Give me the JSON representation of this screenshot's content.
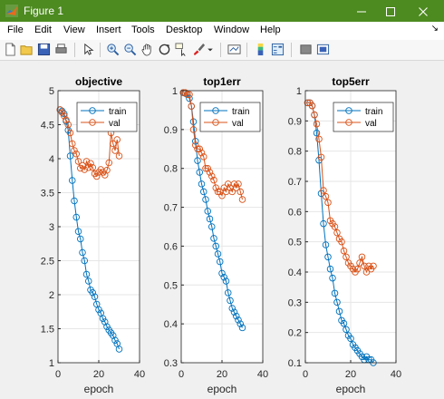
{
  "window": {
    "title": "Figure 1",
    "min_icon": "minimize-icon",
    "max_icon": "maximize-icon",
    "close_icon": "close-icon",
    "accent": "#4d8a20"
  },
  "menu": [
    "File",
    "Edit",
    "View",
    "Insert",
    "Tools",
    "Desktop",
    "Window",
    "Help"
  ],
  "toolbar_icons": [
    "new-figure-icon",
    "open-file-icon",
    "save-icon",
    "print-icon",
    "edit-plot-arrow-icon",
    "zoom-in-icon",
    "zoom-out-icon",
    "pan-hand-icon",
    "rotate-3d-icon",
    "data-cursor-icon",
    "brush-icon",
    "brush-dropdown-icon",
    "link-plot-icon",
    "insert-colorbar-icon",
    "insert-legend-icon",
    "hide-plot-tools-icon",
    "show-plot-tools-icon"
  ],
  "colors": {
    "train": "#0072bd",
    "val": "#d95319"
  },
  "chart_data": [
    {
      "type": "line",
      "title": "objective",
      "xlabel": "epoch",
      "ylabel": "",
      "xlim": [
        0,
        40
      ],
      "ylim": [
        1,
        5
      ],
      "xticks": [
        "0",
        "20",
        "40"
      ],
      "yticks": [
        "1",
        "1.5",
        "2",
        "2.5",
        "3",
        "3.5",
        "4",
        "4.5",
        "5"
      ],
      "grid": true,
      "legend_position": "top-right",
      "series": [
        {
          "name": "train",
          "x": [
            1,
            2,
            3,
            4,
            5,
            6,
            7,
            8,
            9,
            10,
            11,
            12,
            13,
            14,
            15,
            16,
            17,
            18,
            19,
            20,
            21,
            22,
            23,
            24,
            25,
            26,
            27,
            28,
            29,
            30
          ],
          "values": [
            4.72,
            4.7,
            4.66,
            4.55,
            4.42,
            4.04,
            3.68,
            3.38,
            3.14,
            2.93,
            2.82,
            2.62,
            2.5,
            2.3,
            2.2,
            2.07,
            2.03,
            1.97,
            1.86,
            1.78,
            1.73,
            1.65,
            1.6,
            1.53,
            1.48,
            1.44,
            1.4,
            1.33,
            1.28,
            1.2
          ]
        },
        {
          "name": "val",
          "x": [
            1,
            2,
            3,
            4,
            5,
            6,
            7,
            8,
            9,
            10,
            11,
            12,
            13,
            14,
            15,
            16,
            17,
            18,
            19,
            20,
            21,
            22,
            23,
            24,
            25,
            26,
            27,
            28,
            29,
            30
          ],
          "values": [
            4.72,
            4.68,
            4.63,
            4.57,
            4.5,
            4.38,
            4.22,
            4.12,
            4.07,
            3.96,
            3.86,
            3.9,
            3.84,
            3.96,
            3.87,
            3.93,
            3.87,
            3.78,
            3.74,
            3.8,
            3.84,
            3.8,
            3.76,
            3.83,
            3.94,
            4.38,
            4.22,
            4.12,
            4.28,
            4.04
          ]
        }
      ]
    },
    {
      "type": "line",
      "title": "top1err",
      "xlabel": "epoch",
      "ylabel": "",
      "xlim": [
        0,
        40
      ],
      "ylim": [
        0.3,
        1
      ],
      "xticks": [
        "0",
        "20",
        "40"
      ],
      "yticks": [
        "0.3",
        "0.4",
        "0.5",
        "0.6",
        "0.7",
        "0.8",
        "0.9",
        "1"
      ],
      "grid": true,
      "legend_position": "top-right",
      "series": [
        {
          "name": "train",
          "x": [
            1,
            2,
            3,
            4,
            5,
            6,
            7,
            8,
            9,
            10,
            11,
            12,
            13,
            14,
            15,
            16,
            17,
            18,
            19,
            20,
            21,
            22,
            23,
            24,
            25,
            26,
            27,
            28,
            29,
            30
          ],
          "values": [
            0.995,
            0.993,
            0.99,
            0.98,
            0.96,
            0.92,
            0.87,
            0.82,
            0.79,
            0.76,
            0.74,
            0.72,
            0.69,
            0.67,
            0.65,
            0.62,
            0.6,
            0.58,
            0.56,
            0.53,
            0.52,
            0.51,
            0.48,
            0.46,
            0.44,
            0.43,
            0.42,
            0.41,
            0.4,
            0.39
          ]
        },
        {
          "name": "val",
          "x": [
            1,
            2,
            3,
            4,
            5,
            6,
            7,
            8,
            9,
            10,
            11,
            12,
            13,
            14,
            15,
            16,
            17,
            18,
            19,
            20,
            21,
            22,
            23,
            24,
            25,
            26,
            27,
            28,
            29,
            30
          ],
          "values": [
            0.995,
            0.995,
            0.99,
            0.99,
            0.96,
            0.9,
            0.86,
            0.85,
            0.85,
            0.84,
            0.83,
            0.8,
            0.8,
            0.79,
            0.78,
            0.77,
            0.75,
            0.74,
            0.74,
            0.73,
            0.75,
            0.74,
            0.76,
            0.75,
            0.74,
            0.76,
            0.75,
            0.76,
            0.74,
            0.72
          ]
        }
      ]
    },
    {
      "type": "line",
      "title": "top5err",
      "xlabel": "epoch",
      "ylabel": "",
      "xlim": [
        0,
        40
      ],
      "ylim": [
        0.1,
        1
      ],
      "xticks": [
        "0",
        "20",
        "40"
      ],
      "yticks": [
        "0.1",
        "0.2",
        "0.3",
        "0.4",
        "0.5",
        "0.6",
        "0.7",
        "0.8",
        "0.9",
        "1"
      ],
      "grid": true,
      "legend_position": "top-right",
      "series": [
        {
          "name": "train",
          "x": [
            1,
            2,
            3,
            4,
            5,
            6,
            7,
            8,
            9,
            10,
            11,
            12,
            13,
            14,
            15,
            16,
            17,
            18,
            19,
            20,
            21,
            22,
            23,
            24,
            25,
            26,
            27,
            28,
            29,
            30
          ],
          "values": [
            0.96,
            0.96,
            0.95,
            0.92,
            0.86,
            0.77,
            0.66,
            0.56,
            0.49,
            0.45,
            0.41,
            0.38,
            0.33,
            0.3,
            0.27,
            0.24,
            0.23,
            0.21,
            0.19,
            0.18,
            0.16,
            0.15,
            0.14,
            0.13,
            0.12,
            0.11,
            0.12,
            0.11,
            0.11,
            0.1
          ]
        },
        {
          "name": "val",
          "x": [
            1,
            2,
            3,
            4,
            5,
            6,
            7,
            8,
            9,
            10,
            11,
            12,
            13,
            14,
            15,
            16,
            17,
            18,
            19,
            20,
            21,
            22,
            23,
            24,
            25,
            26,
            27,
            28,
            29,
            30
          ],
          "values": [
            0.96,
            0.96,
            0.95,
            0.92,
            0.89,
            0.84,
            0.78,
            0.67,
            0.65,
            0.63,
            0.57,
            0.56,
            0.55,
            0.53,
            0.51,
            0.5,
            0.47,
            0.45,
            0.43,
            0.42,
            0.41,
            0.4,
            0.41,
            0.43,
            0.45,
            0.42,
            0.4,
            0.42,
            0.41,
            0.42
          ]
        }
      ]
    }
  ]
}
